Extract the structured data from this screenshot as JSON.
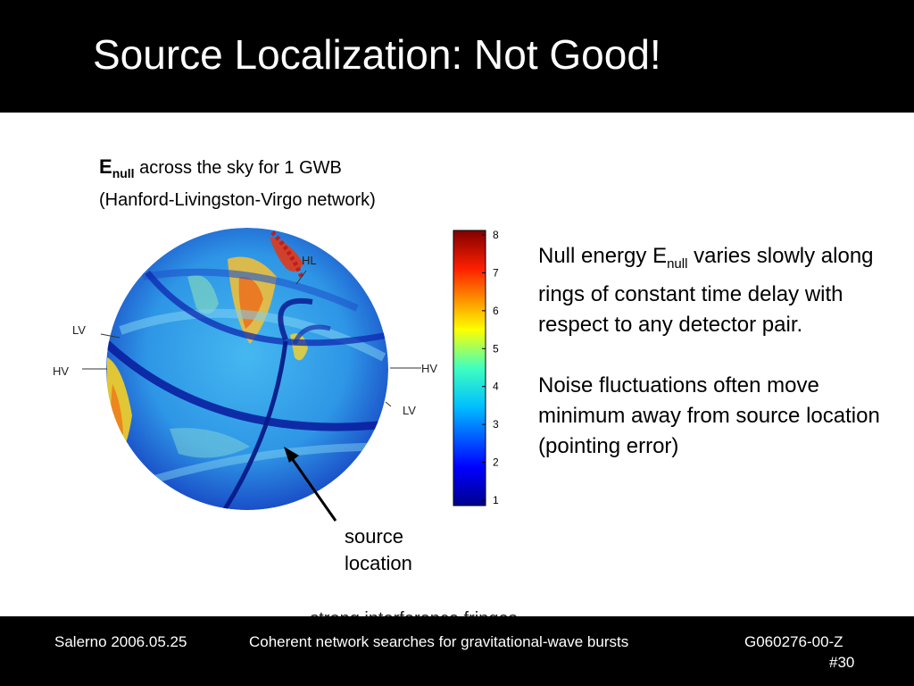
{
  "slide": {
    "title": "Source Localization: Not Good!",
    "caption": {
      "symbol": "E",
      "subscript": "null",
      "line1_rest": " across the sky for 1 GWB",
      "line2": "(Hanford-Livingston-Virgo network)"
    },
    "sky_labels": {
      "hl": "HL",
      "lv_left": "LV",
      "hv_left": "HV",
      "hv_right": "HV",
      "lv_right": "LV"
    },
    "colorbar": {
      "ticks": [
        "8",
        "7",
        "6",
        "5",
        "4",
        "3",
        "2",
        "1"
      ],
      "min": 1,
      "max": 8,
      "colormap": "jet"
    },
    "notes": {
      "p1_before": "Null energy E",
      "p1_sub": "null",
      "p1_after": " varies slowly along rings of constant time delay with respect to any detector pair.",
      "p2": "Noise fluctuations often move minimum away from source location (pointing error)"
    },
    "source_label": {
      "line1": "source",
      "line2": "location"
    },
    "hidden_text": "... strong interference fringes"
  },
  "footer": {
    "left": "Salerno 2006.05.25",
    "center": "Coherent network searches for gravitational-wave bursts",
    "right": "G060276-00-Z",
    "page": "#30"
  },
  "colors": {
    "title_bar": "#000000",
    "footer_bar": "#000000",
    "sphere_base": "#2f9dea",
    "ring_dark": "#0a1fa0",
    "hot": "#f2b01e"
  }
}
